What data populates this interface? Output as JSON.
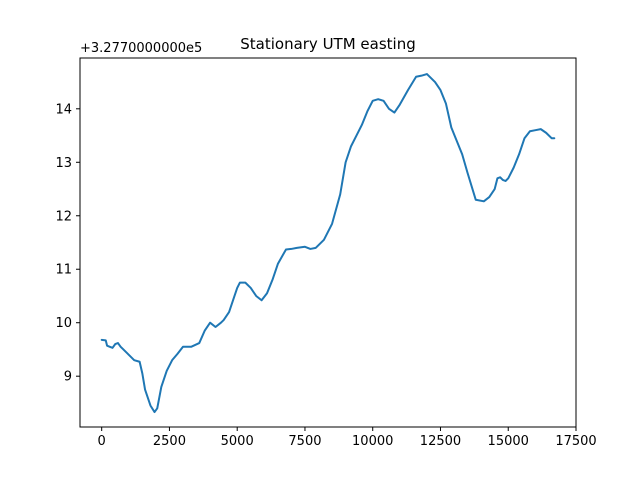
{
  "chart_data": {
    "type": "line",
    "title": "Stationary UTM easting",
    "offset_label": "+3.2770000000e5",
    "xlabel": "",
    "ylabel": "",
    "xlim": [
      -800,
      17500
    ],
    "ylim": [
      8.05,
      14.95
    ],
    "x_ticks": [
      0,
      2500,
      5000,
      7500,
      10000,
      12500,
      15000,
      17500
    ],
    "x_tick_labels": [
      "0",
      "2500",
      "5000",
      "7500",
      "10000",
      "12500",
      "15000",
      "17500"
    ],
    "y_ticks": [
      9,
      10,
      11,
      12,
      13,
      14
    ],
    "y_tick_labels": [
      "9",
      "10",
      "11",
      "12",
      "13",
      "14"
    ],
    "grid": false,
    "series": [
      {
        "color": "#1f77b4",
        "x": [
          0,
          150,
          200,
          300,
          400,
          500,
          600,
          700,
          800,
          1000,
          1200,
          1400,
          1500,
          1600,
          1800,
          1950,
          2050,
          2200,
          2400,
          2600,
          2800,
          3000,
          3100,
          3300,
          3600,
          3800,
          4000,
          4200,
          4400,
          4500,
          4700,
          4900,
          5000,
          5100,
          5300,
          5500,
          5700,
          5900,
          6100,
          6300,
          6500,
          6800,
          7000,
          7200,
          7500,
          7700,
          7900,
          8200,
          8500,
          8800,
          9000,
          9200,
          9400,
          9600,
          9800,
          10000,
          10200,
          10400,
          10600,
          10800,
          11000,
          11300,
          11600,
          11800,
          12000,
          12300,
          12500,
          12700,
          12900,
          13100,
          13300,
          13500,
          13800,
          14100,
          14300,
          14500,
          14600,
          14700,
          14800,
          14900,
          15000,
          15200,
          15400,
          15600,
          15800,
          16000,
          16200,
          16400,
          16600,
          16700
        ],
        "values": [
          9.68,
          9.67,
          9.57,
          9.55,
          9.53,
          9.6,
          9.62,
          9.55,
          9.5,
          9.4,
          9.3,
          9.27,
          9.05,
          8.75,
          8.45,
          8.33,
          8.4,
          8.8,
          9.1,
          9.3,
          9.42,
          9.55,
          9.55,
          9.55,
          9.62,
          9.85,
          10.0,
          9.92,
          10.0,
          10.05,
          10.2,
          10.5,
          10.65,
          10.75,
          10.75,
          10.65,
          10.5,
          10.42,
          10.55,
          10.8,
          11.1,
          11.37,
          11.38,
          11.4,
          11.42,
          11.38,
          11.4,
          11.55,
          11.85,
          12.4,
          13.0,
          13.3,
          13.5,
          13.7,
          13.95,
          14.15,
          14.18,
          14.15,
          14.0,
          13.93,
          14.08,
          14.35,
          14.6,
          14.62,
          14.65,
          14.5,
          14.35,
          14.1,
          13.65,
          13.4,
          13.15,
          12.8,
          12.3,
          12.27,
          12.35,
          12.5,
          12.7,
          12.72,
          12.67,
          12.65,
          12.7,
          12.9,
          13.15,
          13.45,
          13.58,
          13.6,
          13.62,
          13.55,
          13.45,
          13.45
        ]
      }
    ]
  }
}
